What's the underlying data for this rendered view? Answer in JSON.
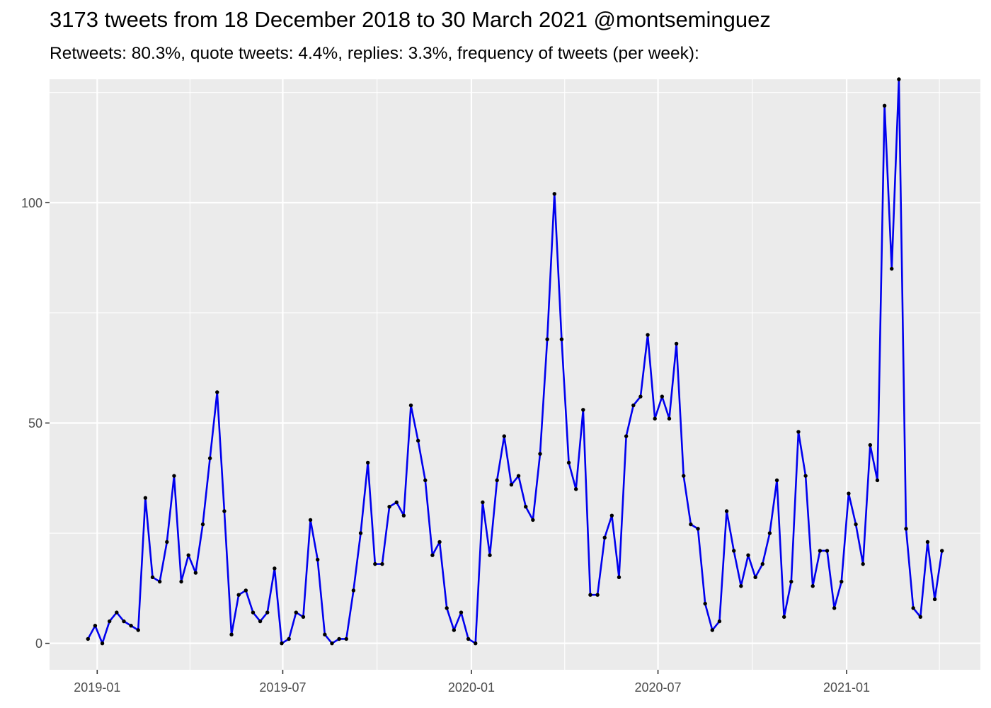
{
  "chart_data": {
    "type": "line",
    "title": "3173 tweets from 18 December 2018 to 30 March 2021 @montseminguez",
    "subtitle": "Retweets: 80.3%, quote tweets: 4.4%, replies: 3.3%, frequency of tweets (per week):",
    "xlabel": "",
    "ylabel": "",
    "x_ticks": [
      "2019-01",
      "2019-07",
      "2020-01",
      "2020-07",
      "2021-01"
    ],
    "y_ticks": [
      0,
      50,
      100
    ],
    "ylim": [
      -6,
      128
    ],
    "grid": true,
    "legend": "none",
    "colors": {
      "line": "#0000ee",
      "point": "#000000",
      "panel": "#ebebeb",
      "grid": "#ffffff"
    },
    "start_date": "2018-12-23",
    "series": [
      {
        "values": [
          1,
          4,
          0,
          5,
          7,
          5,
          4,
          3,
          33,
          15,
          14,
          23,
          38,
          14,
          20,
          16,
          27,
          42,
          57,
          30,
          2,
          11,
          12,
          7,
          5,
          7,
          17,
          0,
          1,
          7,
          6,
          28,
          19,
          2,
          0,
          1,
          1,
          12,
          25,
          41,
          18,
          18,
          31,
          32,
          29,
          54,
          46,
          37,
          20,
          23,
          8,
          3,
          7,
          1,
          0,
          32,
          20,
          37,
          47,
          36,
          38,
          31,
          28,
          43,
          69,
          102,
          69,
          41,
          35,
          53,
          11,
          11,
          24,
          29,
          15,
          47,
          54,
          56,
          70,
          51,
          56,
          51,
          68,
          38,
          27,
          26,
          9,
          3,
          5,
          30,
          21,
          13,
          20,
          15,
          18,
          25,
          37,
          6,
          14,
          48,
          38,
          13,
          21,
          21,
          8,
          14,
          34,
          27,
          18,
          45,
          37,
          122,
          85,
          128,
          26,
          8,
          6,
          23,
          10,
          21
        ]
      }
    ]
  }
}
